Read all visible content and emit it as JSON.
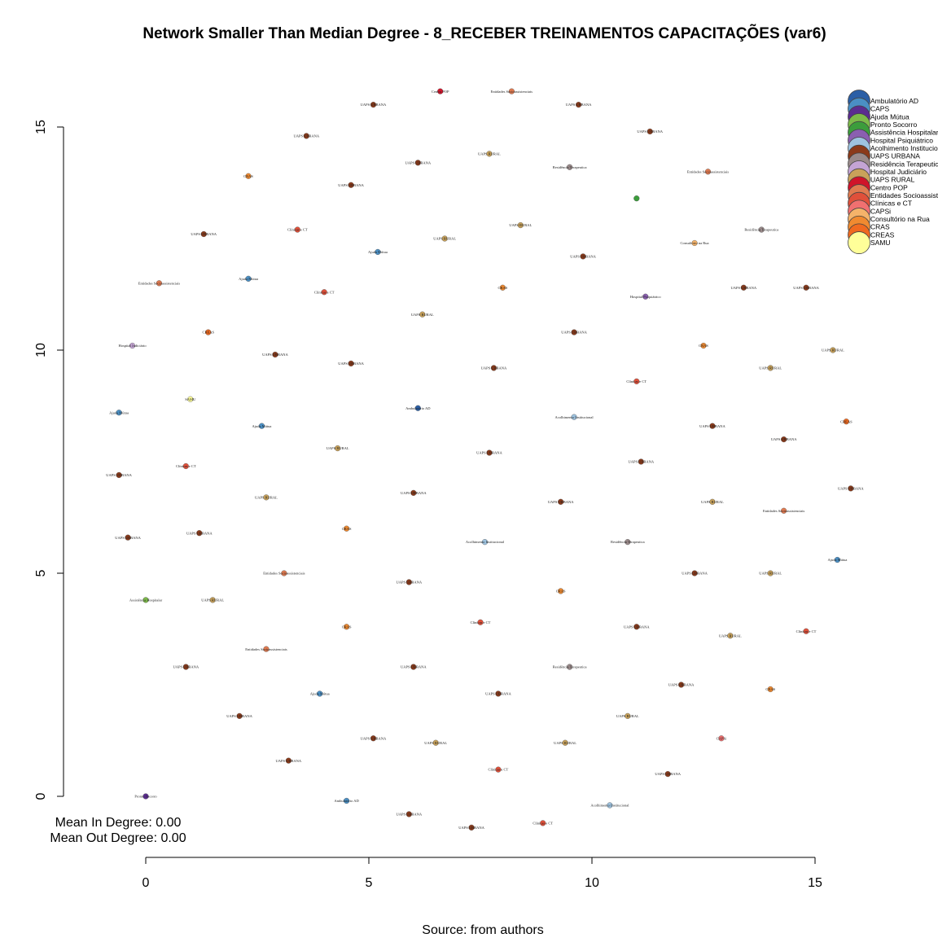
{
  "chart_data": {
    "type": "scatter",
    "title": "Network Smaller Than Median Degree - 8_RECEBER TREINAMENTOS CAPACITAÇÕES (var6)",
    "caption": "Source: from authors",
    "notes": [
      "Mean In Degree: 0.00",
      "Mean Out Degree: 0.00"
    ],
    "xlim": [
      0,
      15
    ],
    "ylim": [
      0,
      15
    ],
    "x_ticks": [
      0,
      5,
      10,
      15
    ],
    "y_ticks": [
      0,
      5,
      10,
      15
    ],
    "legend_position": "top-right",
    "legend": [
      {
        "label": "Ambulatório AD",
        "color": "#2b5fa6"
      },
      {
        "label": "CAPS",
        "color": "#4a8fc4"
      },
      {
        "label": "Ajuda Mútua",
        "color": "#5b2d90"
      },
      {
        "label": "Pronto Socorro",
        "color": "#7dba4a"
      },
      {
        "label": "Assistência Hospitalar",
        "color": "#3c9d3c"
      },
      {
        "label": "Hospital Psiquiátrico",
        "color": "#8a5fb0"
      },
      {
        "label": "Acolhimento Institucional",
        "color": "#9ec3e0"
      },
      {
        "label": "UAPS URBANA",
        "color": "#8b3a1a"
      },
      {
        "label": "Residência Terapeutica",
        "color": "#9a8a8a"
      },
      {
        "label": "Hospital Judiciário",
        "color": "#c4a4d4"
      },
      {
        "label": "UAPS RURAL",
        "color": "#c9a25a"
      },
      {
        "label": "Centro POP",
        "color": "#d0142a"
      },
      {
        "label": "Entidades Socioassistenciais",
        "color": "#e07a50"
      },
      {
        "label": "Clínicas e CT",
        "color": "#e0503a"
      },
      {
        "label": "CAPSi",
        "color": "#f07070"
      },
      {
        "label": "Consultório na Rua",
        "color": "#f5b36a"
      },
      {
        "label": "CRAS",
        "color": "#f08a30"
      },
      {
        "label": "CREAS",
        "color": "#f06a20"
      },
      {
        "label": "SAMU",
        "color": "#ffff99"
      }
    ],
    "points": [
      {
        "x": 6.6,
        "y": 15.8,
        "label": "Centro POP",
        "color": "#d0142a"
      },
      {
        "x": 8.2,
        "y": 15.8,
        "label": "Entidades Socioassistenciais",
        "color": "#e07a50"
      },
      {
        "x": 5.1,
        "y": 15.5,
        "label": "UAPS URBANA",
        "color": "#8b3a1a"
      },
      {
        "x": 9.7,
        "y": 15.5,
        "label": "UAPS URBANA",
        "color": "#8b3a1a"
      },
      {
        "x": 3.6,
        "y": 14.8,
        "label": "UAPS URBANA",
        "color": "#8b3a1a"
      },
      {
        "x": 11.3,
        "y": 14.9,
        "label": "UAPS URBANA",
        "color": "#8b3a1a"
      },
      {
        "x": 7.7,
        "y": 14.4,
        "label": "UAPS RURAL",
        "color": "#c9a25a"
      },
      {
        "x": 6.1,
        "y": 14.2,
        "label": "UAPS URBANA",
        "color": "#8b3a1a"
      },
      {
        "x": 9.5,
        "y": 14.1,
        "label": "Residência Terapeutica",
        "color": "#9a8a8a"
      },
      {
        "x": 12.6,
        "y": 14.0,
        "label": "Entidades Socioassistenciais",
        "color": "#e07a50"
      },
      {
        "x": 2.3,
        "y": 13.9,
        "label": "CRAS",
        "color": "#f08a30"
      },
      {
        "x": 4.6,
        "y": 13.7,
        "label": "UAPS URBANA",
        "color": "#8b3a1a"
      },
      {
        "x": 11.0,
        "y": 13.4,
        "label": "",
        "color": "#3c9d3c"
      },
      {
        "x": 8.4,
        "y": 12.8,
        "label": "UAPS RURAL",
        "color": "#c9a25a"
      },
      {
        "x": 13.8,
        "y": 12.7,
        "label": "Residência Terapeutica",
        "color": "#9a8a8a"
      },
      {
        "x": 1.3,
        "y": 12.6,
        "label": "UAPS URBANA",
        "color": "#8b3a1a"
      },
      {
        "x": 3.4,
        "y": 12.7,
        "label": "Clínicas e CT",
        "color": "#e0503a"
      },
      {
        "x": 6.7,
        "y": 12.5,
        "label": "UAPS RURAL",
        "color": "#c9a25a"
      },
      {
        "x": 12.3,
        "y": 12.4,
        "label": "Consultório na Rua",
        "color": "#f5b36a"
      },
      {
        "x": 5.2,
        "y": 12.2,
        "label": "Ajuda Mútua",
        "color": "#4a8fc4"
      },
      {
        "x": 9.8,
        "y": 12.1,
        "label": "UAPS URBANA",
        "color": "#8b3a1a"
      },
      {
        "x": 2.3,
        "y": 11.6,
        "label": "Ajuda Mútua",
        "color": "#4a8fc4"
      },
      {
        "x": 0.3,
        "y": 11.5,
        "label": "Entidades Socioassistenciais",
        "color": "#e07a50"
      },
      {
        "x": 8.0,
        "y": 11.4,
        "label": "CRAS",
        "color": "#f08a30"
      },
      {
        "x": 4.0,
        "y": 11.3,
        "label": "Clínicas e CT",
        "color": "#e0503a"
      },
      {
        "x": 13.4,
        "y": 11.4,
        "label": "UAPS URBANA",
        "color": "#8b3a1a"
      },
      {
        "x": 14.8,
        "y": 11.4,
        "label": "UAPS URBANA",
        "color": "#8b3a1a"
      },
      {
        "x": 11.2,
        "y": 11.2,
        "label": "Hospital Psiquiátrico",
        "color": "#8a5fb0"
      },
      {
        "x": 6.2,
        "y": 10.8,
        "label": "UAPS RURAL",
        "color": "#c9a25a"
      },
      {
        "x": 1.4,
        "y": 10.4,
        "label": "CREAS",
        "color": "#f06a20"
      },
      {
        "x": 9.6,
        "y": 10.4,
        "label": "UAPS URBANA",
        "color": "#8b3a1a"
      },
      {
        "x": 12.5,
        "y": 10.1,
        "label": "CRAS",
        "color": "#f08a30"
      },
      {
        "x": -0.3,
        "y": 10.1,
        "label": "Hospital Judiciário",
        "color": "#c4a4d4"
      },
      {
        "x": 15.4,
        "y": 10.0,
        "label": "UAPS RURAL",
        "color": "#c9a25a"
      },
      {
        "x": 2.9,
        "y": 9.9,
        "label": "UAPS URBANA",
        "color": "#8b3a1a"
      },
      {
        "x": 4.6,
        "y": 9.7,
        "label": "UAPS URBANA",
        "color": "#8b3a1a"
      },
      {
        "x": 7.8,
        "y": 9.6,
        "label": "UAPS URBANA",
        "color": "#8b3a1a"
      },
      {
        "x": 14.0,
        "y": 9.6,
        "label": "UAPS RURAL",
        "color": "#c9a25a"
      },
      {
        "x": 11.0,
        "y": 9.3,
        "label": "Clínicas e CT",
        "color": "#e0503a"
      },
      {
        "x": 1.0,
        "y": 8.9,
        "label": "SAMU",
        "color": "#ffff99"
      },
      {
        "x": 6.1,
        "y": 8.7,
        "label": "Ambulatório AD",
        "color": "#2b5fa6"
      },
      {
        "x": -0.6,
        "y": 8.6,
        "label": "Ajuda Mútua",
        "color": "#4a8fc4"
      },
      {
        "x": 9.6,
        "y": 8.5,
        "label": "Acolhimento Institucional",
        "color": "#9ec3e0"
      },
      {
        "x": 15.7,
        "y": 8.4,
        "label": "CREAS",
        "color": "#f06a20"
      },
      {
        "x": 2.6,
        "y": 8.3,
        "label": "Ajuda Mútua",
        "color": "#4a8fc4"
      },
      {
        "x": 12.7,
        "y": 8.3,
        "label": "UAPS URBANA",
        "color": "#8b3a1a"
      },
      {
        "x": 14.3,
        "y": 8.0,
        "label": "UAPS URBANA",
        "color": "#8b3a1a"
      },
      {
        "x": 4.3,
        "y": 7.8,
        "label": "UAPS RURAL",
        "color": "#c9a25a"
      },
      {
        "x": 7.7,
        "y": 7.7,
        "label": "UAPS URBANA",
        "color": "#8b3a1a"
      },
      {
        "x": 11.1,
        "y": 7.5,
        "label": "UAPS URBANA",
        "color": "#8b3a1a"
      },
      {
        "x": 0.9,
        "y": 7.4,
        "label": "Clínicas e CT",
        "color": "#e0503a"
      },
      {
        "x": -0.6,
        "y": 7.2,
        "label": "UAPS URBANA",
        "color": "#8b3a1a"
      },
      {
        "x": 15.8,
        "y": 6.9,
        "label": "UAPS URBANA",
        "color": "#8b3a1a"
      },
      {
        "x": 6.0,
        "y": 6.8,
        "label": "UAPS URBANA",
        "color": "#8b3a1a"
      },
      {
        "x": 2.7,
        "y": 6.7,
        "label": "UAPS RURAL",
        "color": "#c9a25a"
      },
      {
        "x": 9.3,
        "y": 6.6,
        "label": "UAPS URBANA",
        "color": "#8b3a1a"
      },
      {
        "x": 12.7,
        "y": 6.6,
        "label": "UAPS RURAL",
        "color": "#c9a25a"
      },
      {
        "x": 14.3,
        "y": 6.4,
        "label": "Entidades Socioassistenciais",
        "color": "#e07a50"
      },
      {
        "x": 4.5,
        "y": 6.0,
        "label": "CRAS",
        "color": "#f08a30"
      },
      {
        "x": 1.2,
        "y": 5.9,
        "label": "UAPS URBANA",
        "color": "#8b3a1a"
      },
      {
        "x": -0.4,
        "y": 5.8,
        "label": "UAPS URBANA",
        "color": "#8b3a1a"
      },
      {
        "x": 7.6,
        "y": 5.7,
        "label": "Acolhimento Institucional",
        "color": "#9ec3e0"
      },
      {
        "x": 10.8,
        "y": 5.7,
        "label": "Residência Terapeutica",
        "color": "#9a8a8a"
      },
      {
        "x": 15.5,
        "y": 5.3,
        "label": "Ajuda Mútua",
        "color": "#4a8fc4"
      },
      {
        "x": 3.1,
        "y": 5.0,
        "label": "Entidades Socioassistenciais",
        "color": "#e07a50"
      },
      {
        "x": 12.3,
        "y": 5.0,
        "label": "UAPS URBANA",
        "color": "#8b3a1a"
      },
      {
        "x": 14.0,
        "y": 5.0,
        "label": "UAPS RURAL",
        "color": "#c9a25a"
      },
      {
        "x": 5.9,
        "y": 4.8,
        "label": "UAPS URBANA",
        "color": "#8b3a1a"
      },
      {
        "x": 9.3,
        "y": 4.6,
        "label": "CRAS",
        "color": "#f08a30"
      },
      {
        "x": 0.0,
        "y": 4.4,
        "label": "Assistência Hospitalar",
        "color": "#7dba4a"
      },
      {
        "x": 1.5,
        "y": 4.4,
        "label": "UAPS RURAL",
        "color": "#c9a25a"
      },
      {
        "x": 7.5,
        "y": 3.9,
        "label": "Clínicas e CT",
        "color": "#e0503a"
      },
      {
        "x": 4.5,
        "y": 3.8,
        "label": "CRAS",
        "color": "#f08a30"
      },
      {
        "x": 11.0,
        "y": 3.8,
        "label": "UAPS URBANA",
        "color": "#8b3a1a"
      },
      {
        "x": 14.8,
        "y": 3.7,
        "label": "Clínicas e CT",
        "color": "#e0503a"
      },
      {
        "x": 13.1,
        "y": 3.6,
        "label": "UAPS RURAL",
        "color": "#c9a25a"
      },
      {
        "x": 2.7,
        "y": 3.3,
        "label": "Entidades Socioassistenciais",
        "color": "#e07a50"
      },
      {
        "x": 0.9,
        "y": 2.9,
        "label": "UAPS URBANA",
        "color": "#8b3a1a"
      },
      {
        "x": 9.5,
        "y": 2.9,
        "label": "Residência Terapeutica",
        "color": "#9a8a8a"
      },
      {
        "x": 6.0,
        "y": 2.9,
        "label": "UAPS URBANA",
        "color": "#8b3a1a"
      },
      {
        "x": 12.0,
        "y": 2.5,
        "label": "UAPS URBANA",
        "color": "#8b3a1a"
      },
      {
        "x": 3.9,
        "y": 2.3,
        "label": "Ajuda Mútua",
        "color": "#4a8fc4"
      },
      {
        "x": 7.9,
        "y": 2.3,
        "label": "UAPS URBANA",
        "color": "#8b3a1a"
      },
      {
        "x": 14.0,
        "y": 2.4,
        "label": "CRAS",
        "color": "#f08a30"
      },
      {
        "x": 2.1,
        "y": 1.8,
        "label": "UAPS URBANA",
        "color": "#8b3a1a"
      },
      {
        "x": 10.8,
        "y": 1.8,
        "label": "UAPS RURAL",
        "color": "#c9a25a"
      },
      {
        "x": 5.1,
        "y": 1.3,
        "label": "UAPS URBANA",
        "color": "#8b3a1a"
      },
      {
        "x": 6.5,
        "y": 1.2,
        "label": "UAPS RURAL",
        "color": "#c9a25a"
      },
      {
        "x": 9.4,
        "y": 1.2,
        "label": "UAPS RURAL",
        "color": "#c9a25a"
      },
      {
        "x": 12.9,
        "y": 1.3,
        "label": "CAPSi",
        "color": "#f07070"
      },
      {
        "x": 3.2,
        "y": 0.8,
        "label": "UAPS URBANA",
        "color": "#8b3a1a"
      },
      {
        "x": 7.9,
        "y": 0.6,
        "label": "Clínicas e CT",
        "color": "#e0503a"
      },
      {
        "x": 11.7,
        "y": 0.5,
        "label": "UAPS URBANA",
        "color": "#8b3a1a"
      },
      {
        "x": 0.0,
        "y": 0.0,
        "label": "Pronto Socorro",
        "color": "#5b2d90"
      },
      {
        "x": 4.5,
        "y": -0.1,
        "label": "Ambulatório AD",
        "color": "#4a8fc4"
      },
      {
        "x": 10.4,
        "y": -0.2,
        "label": "Acolhimento Institucional",
        "color": "#9ec3e0"
      },
      {
        "x": 5.9,
        "y": -0.4,
        "label": "UAPS URBANA",
        "color": "#8b3a1a"
      },
      {
        "x": 8.9,
        "y": -0.6,
        "label": "Clínicas e CT",
        "color": "#e0503a"
      },
      {
        "x": 7.3,
        "y": -0.7,
        "label": "UAPS URBANA",
        "color": "#8b3a1a"
      }
    ]
  }
}
